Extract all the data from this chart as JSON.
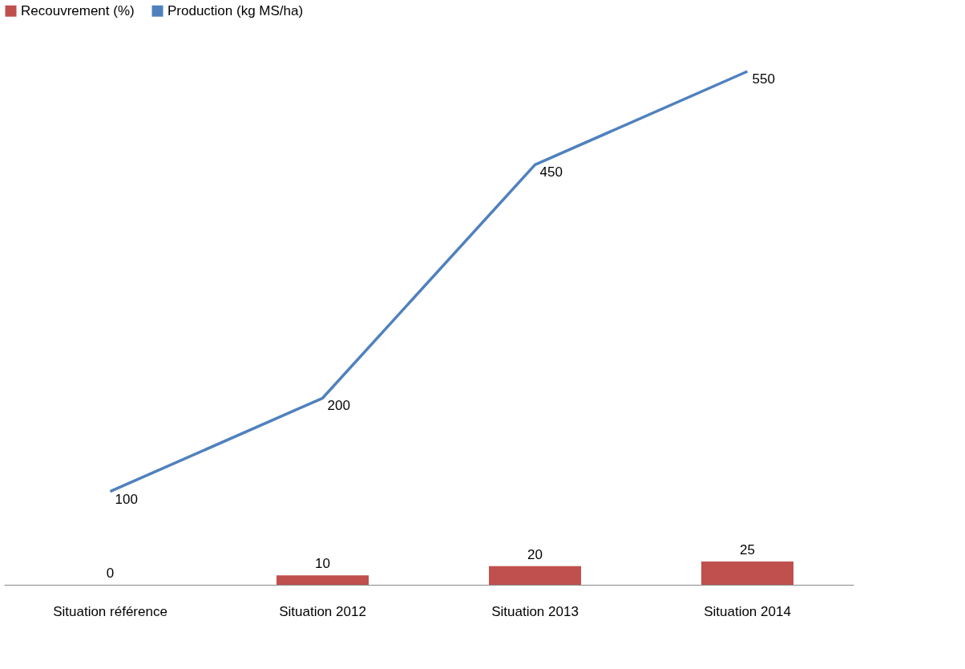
{
  "chart_data": {
    "type": "bar",
    "categories": [
      "Situation référence",
      "Situation 2012",
      "Situation 2013",
      "Situation 2014"
    ],
    "series": [
      {
        "name": "Recouvrement  (%)",
        "color": "#c0504d",
        "values": [
          0,
          10,
          20,
          25
        ]
      },
      {
        "name": "Production (kg MS/ha)",
        "type": "line",
        "color": "#4f81bd",
        "values": [
          100,
          200,
          450,
          550
        ]
      }
    ],
    "tick_labels": "x",
    "data_labels": true,
    "legend": "top",
    "grid": false
  }
}
